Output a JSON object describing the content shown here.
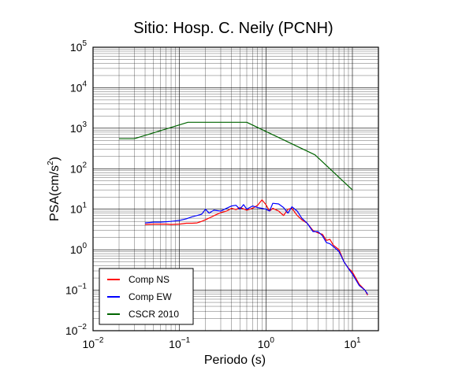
{
  "chart_data": {
    "type": "line",
    "title": "Sitio: Hosp. C. Neily (PCNH)",
    "xlabel": "Periodo (s)",
    "ylabel_main": "PSA(cm/s",
    "ylabel_exp": "2",
    "ylabel_close": ")",
    "x_scale": "log",
    "y_scale": "log",
    "xlim": [
      0.01,
      20
    ],
    "ylim": [
      0.01,
      100000
    ],
    "grid": true,
    "legend_position": "bottom-left",
    "x_ticks": [
      {
        "base": "10",
        "exp": "−2",
        "value": 0.01
      },
      {
        "base": "10",
        "exp": "−1",
        "value": 0.1
      },
      {
        "base": "10",
        "exp": "0",
        "value": 1
      },
      {
        "base": "10",
        "exp": "1",
        "value": 10
      }
    ],
    "y_ticks": [
      {
        "base": "10",
        "exp": "−2",
        "value": 0.01
      },
      {
        "base": "10",
        "exp": "−1",
        "value": 0.1
      },
      {
        "base": "10",
        "exp": "0",
        "value": 1
      },
      {
        "base": "10",
        "exp": "1",
        "value": 10
      },
      {
        "base": "10",
        "exp": "2",
        "value": 100
      },
      {
        "base": "10",
        "exp": "3",
        "value": 1000
      },
      {
        "base": "10",
        "exp": "4",
        "value": 10000
      },
      {
        "base": "10",
        "exp": "5",
        "value": 100000
      }
    ],
    "series": [
      {
        "name": "Comp NS",
        "color": "#ff0000",
        "points": [
          [
            0.04,
            4.2
          ],
          [
            0.05,
            4.3
          ],
          [
            0.06,
            4.3
          ],
          [
            0.07,
            4.3
          ],
          [
            0.08,
            4.2
          ],
          [
            0.1,
            4.3
          ],
          [
            0.12,
            4.5
          ],
          [
            0.14,
            4.5
          ],
          [
            0.16,
            4.6
          ],
          [
            0.18,
            5.0
          ],
          [
            0.2,
            5.5
          ],
          [
            0.23,
            6.3
          ],
          [
            0.26,
            7.2
          ],
          [
            0.3,
            8.2
          ],
          [
            0.35,
            9.0
          ],
          [
            0.4,
            10.5
          ],
          [
            0.45,
            9.8
          ],
          [
            0.5,
            11.0
          ],
          [
            0.55,
            10.2
          ],
          [
            0.6,
            9.5
          ],
          [
            0.7,
            10.5
          ],
          [
            0.8,
            12.5
          ],
          [
            0.9,
            17.0
          ],
          [
            1.0,
            13.0
          ],
          [
            1.1,
            9.0
          ],
          [
            1.2,
            10.5
          ],
          [
            1.4,
            9.0
          ],
          [
            1.6,
            7.0
          ],
          [
            1.8,
            10.0
          ],
          [
            2.0,
            10.5
          ],
          [
            2.3,
            7.0
          ],
          [
            2.6,
            5.5
          ],
          [
            3.0,
            4.5
          ],
          [
            3.5,
            3.0
          ],
          [
            4.0,
            2.6
          ],
          [
            4.5,
            2.4
          ],
          [
            5.0,
            1.7
          ],
          [
            5.5,
            1.8
          ],
          [
            6.0,
            1.3
          ],
          [
            7.0,
            1.0
          ],
          [
            8.0,
            0.5
          ],
          [
            9.0,
            0.35
          ],
          [
            10.0,
            0.28
          ],
          [
            12.0,
            0.14
          ],
          [
            14.0,
            0.1
          ],
          [
            15.0,
            0.075
          ]
        ]
      },
      {
        "name": "Comp EW",
        "color": "#0000ff",
        "points": [
          [
            0.04,
            4.6
          ],
          [
            0.05,
            4.8
          ],
          [
            0.06,
            4.8
          ],
          [
            0.07,
            4.9
          ],
          [
            0.08,
            5.0
          ],
          [
            0.1,
            5.3
          ],
          [
            0.12,
            5.8
          ],
          [
            0.14,
            6.5
          ],
          [
            0.16,
            7.0
          ],
          [
            0.18,
            7.5
          ],
          [
            0.2,
            10.0
          ],
          [
            0.22,
            8.0
          ],
          [
            0.25,
            9.5
          ],
          [
            0.3,
            9.0
          ],
          [
            0.35,
            10.5
          ],
          [
            0.4,
            12.0
          ],
          [
            0.45,
            12.5
          ],
          [
            0.5,
            10.0
          ],
          [
            0.55,
            13.0
          ],
          [
            0.6,
            10.0
          ],
          [
            0.7,
            12.0
          ],
          [
            0.8,
            11.0
          ],
          [
            0.9,
            10.5
          ],
          [
            1.0,
            10.0
          ],
          [
            1.1,
            9.0
          ],
          [
            1.2,
            14.0
          ],
          [
            1.4,
            13.5
          ],
          [
            1.6,
            11.0
          ],
          [
            1.8,
            8.0
          ],
          [
            2.0,
            11.5
          ],
          [
            2.3,
            9.0
          ],
          [
            2.6,
            6.0
          ],
          [
            3.0,
            4.5
          ],
          [
            3.5,
            2.8
          ],
          [
            4.0,
            2.8
          ],
          [
            4.5,
            2.2
          ],
          [
            5.0,
            1.5
          ],
          [
            5.5,
            1.4
          ],
          [
            6.0,
            1.2
          ],
          [
            7.0,
            0.9
          ],
          [
            8.0,
            0.5
          ],
          [
            9.0,
            0.34
          ],
          [
            10.0,
            0.25
          ],
          [
            12.0,
            0.13
          ],
          [
            14.0,
            0.1
          ],
          [
            15.0,
            0.08
          ]
        ]
      },
      {
        "name": "CSCR 2010",
        "color": "#006400",
        "points": [
          [
            0.02,
            550
          ],
          [
            0.03,
            550
          ],
          [
            0.125,
            1400
          ],
          [
            0.6,
            1400
          ],
          [
            3.7,
            220
          ],
          [
            10.0,
            30
          ]
        ]
      }
    ]
  }
}
